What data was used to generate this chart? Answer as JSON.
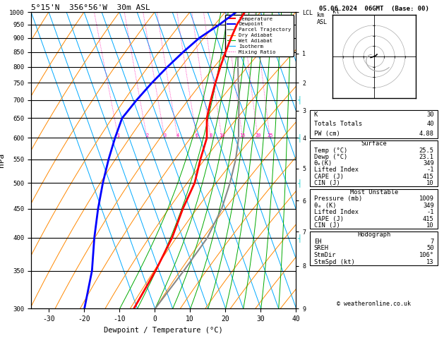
{
  "title_left": "5°15'N  356°56'W  30m ASL",
  "title_top_right": "05.06.2024  06GMT  (Base: 00)",
  "xlabel": "Dewpoint / Temperature (°C)",
  "ylabel_left": "hPa",
  "xlim": [
    -35,
    40
  ],
  "plevs": [
    300,
    350,
    400,
    450,
    500,
    550,
    600,
    650,
    700,
    750,
    800,
    850,
    900,
    950,
    1000
  ],
  "km_ticks": [
    {
      "p": 300,
      "label": "9"
    },
    {
      "p": 357,
      "label": "8"
    },
    {
      "p": 410,
      "label": "7"
    },
    {
      "p": 465,
      "label": "6"
    },
    {
      "p": 530,
      "label": "5"
    },
    {
      "p": 600,
      "label": "4"
    },
    {
      "p": 670,
      "label": "3"
    },
    {
      "p": 750,
      "label": "2"
    },
    {
      "p": 845,
      "label": "1"
    },
    {
      "p": 1000,
      "label": "LCL"
    }
  ],
  "isotherm_temps": [
    -35,
    -30,
    -25,
    -20,
    -15,
    -10,
    -5,
    0,
    5,
    10,
    15,
    20,
    25,
    30,
    35,
    40
  ],
  "isotherm_color": "#00aaff",
  "dry_adiabat_color": "#ff8800",
  "wet_adiabat_color": "#00aa00",
  "mixing_ratio_color": "#ff00aa",
  "mixing_ratio_values": [
    1,
    2,
    3,
    4,
    6,
    8,
    10,
    15,
    20,
    25
  ],
  "mixing_ratio_labels": [
    "1",
    "2",
    "3",
    "4",
    "6",
    "8",
    "10",
    "15",
    "20",
    "25"
  ],
  "temp_profile_p": [
    1000,
    950,
    900,
    850,
    800,
    750,
    700,
    650,
    600,
    550,
    500,
    450,
    400,
    350,
    300
  ],
  "temp_profile_t": [
    25.5,
    22,
    19,
    16,
    13,
    10,
    7,
    4,
    2,
    -2,
    -6,
    -12,
    -18,
    -26,
    -36
  ],
  "dewp_profile_p": [
    1000,
    950,
    900,
    850,
    800,
    750,
    700,
    650,
    600,
    550,
    500,
    450,
    400,
    350,
    300
  ],
  "dewp_profile_t": [
    23.1,
    17,
    10,
    4,
    -2,
    -8,
    -14,
    -20,
    -24,
    -28,
    -32,
    -36,
    -40,
    -44,
    -50
  ],
  "parcel_profile_p": [
    1000,
    950,
    900,
    850,
    800,
    750,
    700,
    650,
    600,
    550,
    500,
    450,
    400,
    350,
    300
  ],
  "parcel_profile_t": [
    25.5,
    23,
    21,
    19.5,
    18,
    16.5,
    15,
    13,
    11,
    8,
    4,
    -1,
    -8,
    -18,
    -30
  ],
  "temp_color": "#ff0000",
  "dewp_color": "#0000ff",
  "parcel_color": "#888888",
  "bg_color": "#ffffff",
  "skew_factor": 25,
  "table_K": 30,
  "table_TT": 40,
  "table_PW": "4.88",
  "surface_temp": "25.5",
  "surface_dewp": "23.1",
  "surface_theta_e": 349,
  "surface_LI": -1,
  "surface_CAPE": 415,
  "surface_CIN": 10,
  "mu_pressure": 1009,
  "mu_theta_e": 349,
  "mu_LI": -1,
  "mu_CAPE": 415,
  "mu_CIN": 10,
  "hodo_EH": 7,
  "hodo_SREH": 50,
  "hodo_StmDir": "106°",
  "hodo_StmSpd": 13,
  "copyright": "© weatheronline.co.uk"
}
